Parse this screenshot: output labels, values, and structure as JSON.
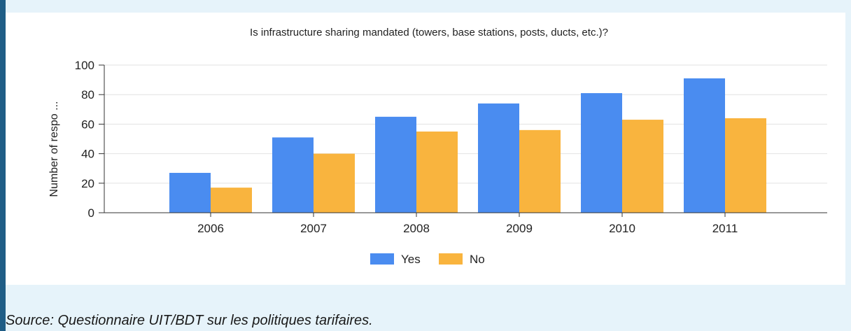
{
  "chart_data": {
    "type": "bar",
    "title": "Is infrastructure sharing mandated (towers, base stations, posts, ducts, etc.)?",
    "ylabel": "Number of respo ...",
    "xlabel": "",
    "categories": [
      "2006",
      "2007",
      "2008",
      "2009",
      "2010",
      "2011"
    ],
    "series": [
      {
        "name": "Yes",
        "values": [
          27,
          51,
          65,
          74,
          81,
          91
        ],
        "color": "#4a8cf0"
      },
      {
        "name": "No",
        "values": [
          17,
          40,
          55,
          56,
          63,
          64
        ],
        "color": "#f9b43e"
      }
    ],
    "ylim": [
      0,
      100
    ],
    "yticks": [
      0,
      20,
      40,
      60,
      80,
      100
    ],
    "grid": true,
    "legend_position": "bottom"
  },
  "source": "Source: Questionnaire UIT/BDT sur les politiques tarifaires."
}
